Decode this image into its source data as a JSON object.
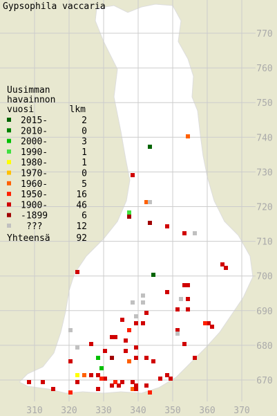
{
  "title": "Gypsophila vaccaria",
  "legend": {
    "heading": [
      "Uusimman",
      "havainnon",
      "vuosi"
    ],
    "count_header": "lkm",
    "rows": [
      {
        "label": "2015-",
        "count": "2",
        "color": "#006400"
      },
      {
        "label": "2010-",
        "count": "0",
        "color": "#008000"
      },
      {
        "label": "2000-",
        "count": "3",
        "color": "#00c000"
      },
      {
        "label": "1990-",
        "count": "1",
        "color": "#40e040"
      },
      {
        "label": "1980-",
        "count": "1",
        "color": "#ffff00"
      },
      {
        "label": "1970-",
        "count": "0",
        "color": "#ffc000"
      },
      {
        "label": "1960-",
        "count": "5",
        "color": "#ff6000"
      },
      {
        "label": "1950-",
        "count": "16",
        "color": "#ff2000"
      },
      {
        "label": "1900-",
        "count": "46",
        "color": "#d00000"
      },
      {
        "label": "-1899",
        "count": "6",
        "color": "#a00000"
      },
      {
        "label": "???",
        "count": "12",
        "color": "#c0c0c0"
      }
    ],
    "total_label": "Yhteensä",
    "total": "92"
  },
  "grid": {
    "x_labels": [
      "310",
      "320",
      "330",
      "340",
      "350",
      "360",
      "370"
    ],
    "y_labels": [
      "770",
      "760",
      "750",
      "740",
      "730",
      "720",
      "710",
      "700",
      "690",
      "680",
      "670"
    ]
  }
}
